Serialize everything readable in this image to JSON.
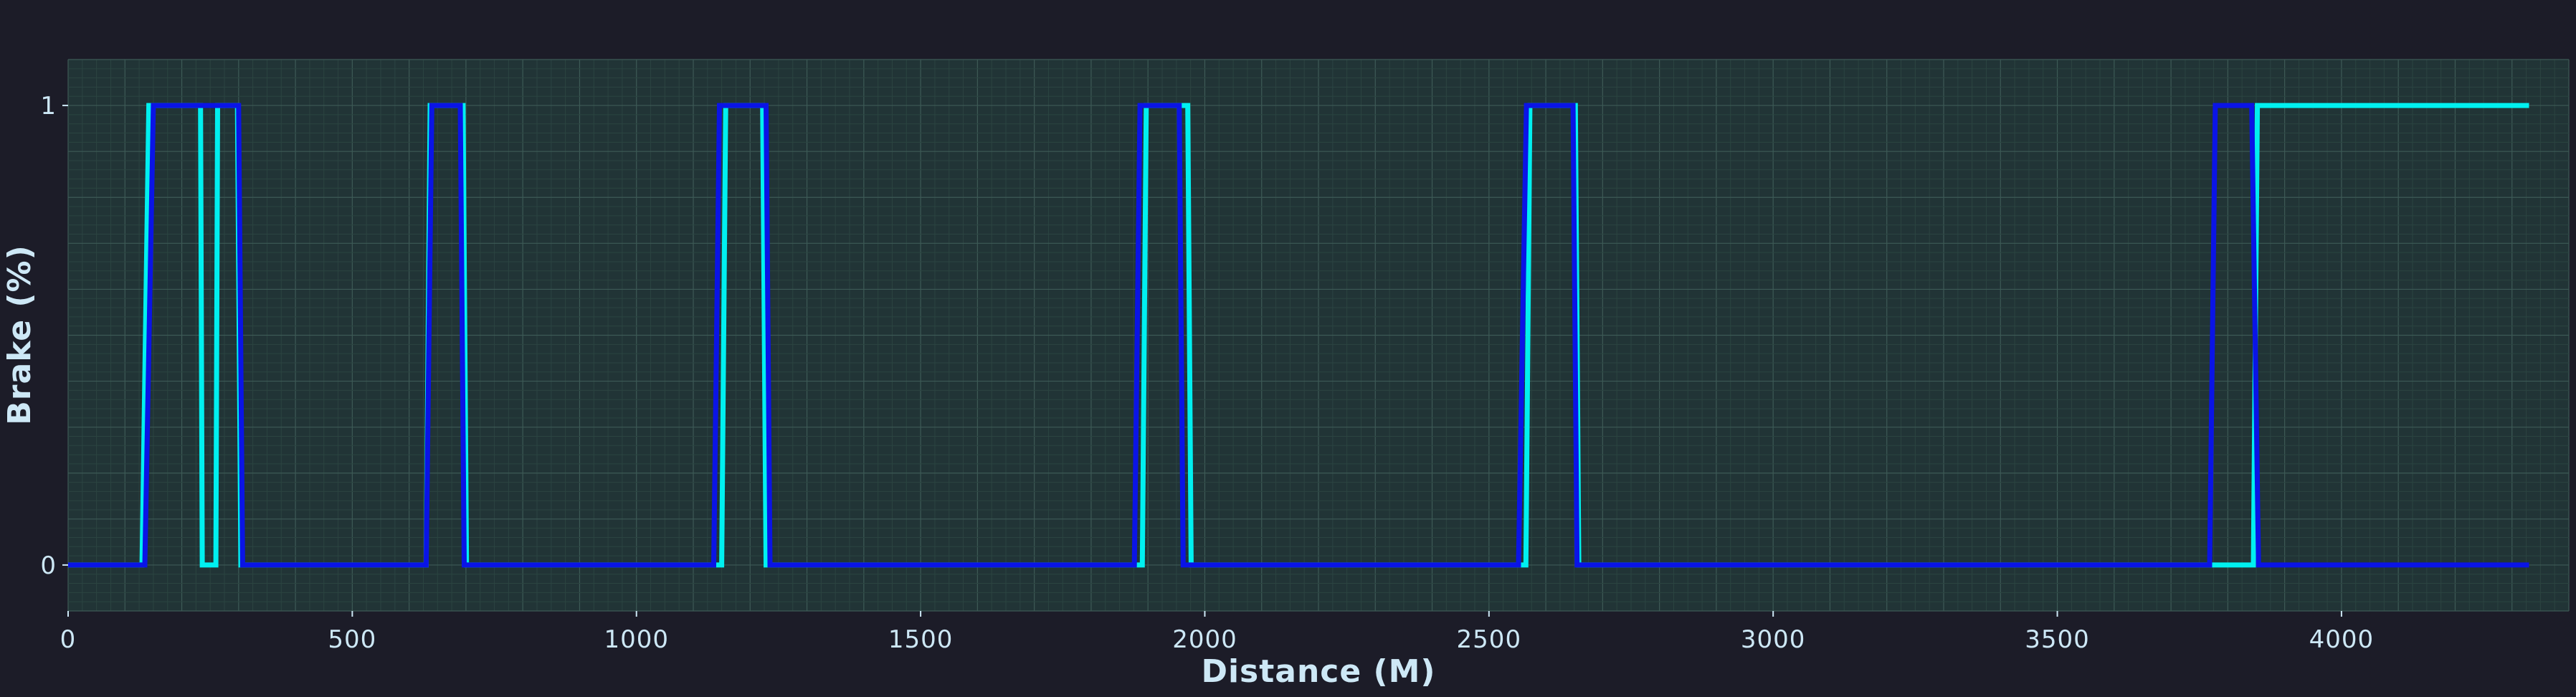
{
  "chart_data": {
    "type": "line",
    "xlabel": "Distance (M)",
    "ylabel": "Brake (%)",
    "xlim": [
      0,
      4400
    ],
    "ylim": [
      -0.1,
      1.1
    ],
    "x_ticks": [
      0,
      500,
      1000,
      1500,
      2000,
      2500,
      3000,
      3500,
      4000
    ],
    "x_tick_labels": [
      "0",
      "500",
      "1000",
      "1500",
      "2000",
      "2500",
      "3000",
      "3500",
      "4000"
    ],
    "y_ticks": [
      0,
      1
    ],
    "y_tick_labels": [
      "0",
      "1"
    ],
    "grid": true,
    "legend": false,
    "colors": {
      "background": "#1c1c28",
      "plot_background": "#213436",
      "grid_major": "#3d5a56",
      "grid_minor": "#2b4441",
      "text": "#cde8f6",
      "series_1": "#00f0f0",
      "series_2": "#0a14e6"
    },
    "series": [
      {
        "color": "#00f0f0",
        "x": [
          0,
          130,
          142,
          233,
          236,
          260,
          263,
          298,
          304,
          630,
          637,
          695,
          701,
          1150,
          1157,
          1222,
          1228,
          1890,
          1897,
          1970,
          1976,
          2565,
          2572,
          2652,
          2658,
          3845,
          3852,
          4330
        ],
        "y": [
          0,
          0,
          1,
          1,
          0,
          0,
          1,
          1,
          0,
          0,
          1,
          1,
          0,
          0,
          1,
          1,
          0,
          0,
          1,
          1,
          0,
          0,
          1,
          1,
          0,
          0,
          1,
          1
        ]
      },
      {
        "color": "#0a14e6",
        "x": [
          0,
          135,
          150,
          300,
          307,
          630,
          640,
          690,
          697,
          1136,
          1146,
          1228,
          1235,
          1876,
          1886,
          1955,
          1962,
          2552,
          2566,
          2648,
          2655,
          3768,
          3778,
          3842,
          3854,
          4330
        ],
        "y": [
          0,
          0,
          1,
          1,
          0,
          0,
          1,
          1,
          0,
          0,
          1,
          1,
          0,
          0,
          1,
          1,
          0,
          0,
          1,
          1,
          0,
          0,
          1,
          1,
          0,
          0
        ]
      }
    ]
  }
}
